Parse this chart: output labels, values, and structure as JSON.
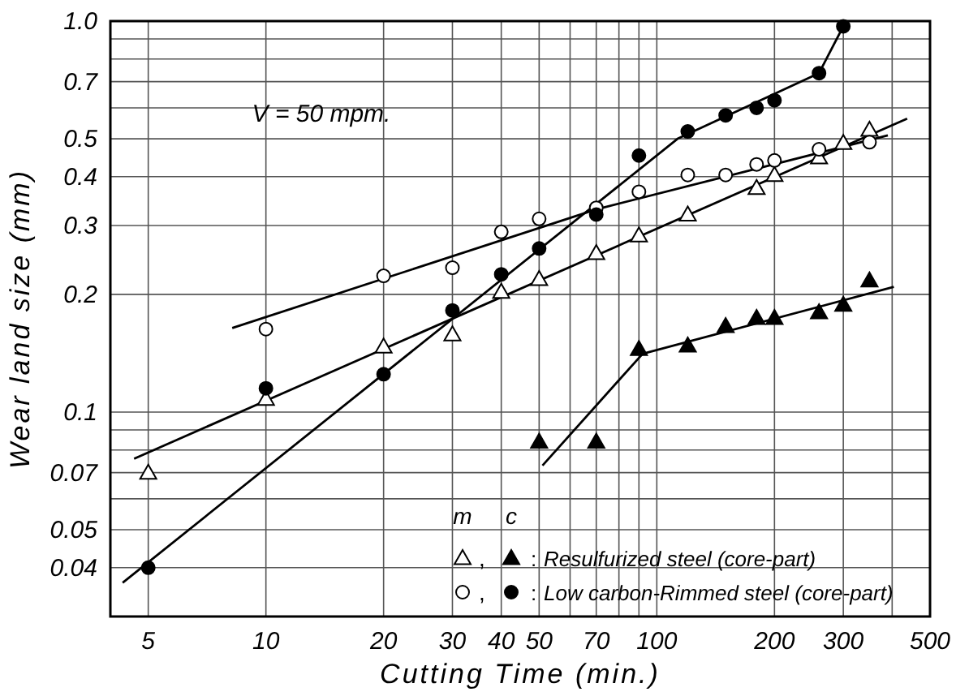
{
  "chart_data": {
    "type": "scatter",
    "xlabel": "Cutting Time (min.)",
    "ylabel": "Wear land size (mm)",
    "annotations": [
      "V = 50 mpm.",
      "m",
      "c",
      ",",
      ":"
    ],
    "log": "xy",
    "grid": true,
    "legend": "bottom right",
    "xlim": [
      4,
      500
    ],
    "ylim": [
      0.03,
      1.0
    ],
    "xticks": [
      5,
      10,
      20,
      30,
      40,
      50,
      {
        "value": 60,
        "label": null
      },
      70,
      {
        "value": 80,
        "label": null
      },
      {
        "value": 90,
        "label": null
      },
      100,
      200,
      300,
      {
        "value": 400,
        "label": null
      },
      500
    ],
    "yticks": [
      0.04,
      0.05,
      {
        "value": 0.06,
        "label": null
      },
      0.07,
      {
        "value": 0.08,
        "label": null
      },
      {
        "value": 0.09,
        "label": null
      },
      0.1,
      0.2,
      0.3,
      0.4,
      0.5,
      {
        "value": 0.6,
        "label": null
      },
      0.7,
      {
        "value": 0.8,
        "label": null
      },
      {
        "value": 0.9,
        "label": null
      },
      {
        "value": 1.0,
        "label": "1.0"
      }
    ],
    "series": [
      {
        "type": "line",
        "color": "#000000",
        "marker": "none",
        "x": [
          4.6,
          437
        ],
        "values": [
          0.076,
          0.563
        ]
      },
      {
        "type": "line",
        "color": "#000000",
        "marker": "none",
        "x": [
          51,
          92,
          404
        ],
        "values": [
          0.073,
          0.141,
          0.209
        ]
      },
      {
        "type": "line",
        "color": "#000000",
        "marker": "none",
        "x": [
          8.2,
          70,
          390
        ],
        "values": [
          0.164,
          0.33,
          0.51
        ]
      },
      {
        "type": "line",
        "color": "#000000",
        "marker": "none",
        "x": [
          4.3,
          113,
          260,
          300
        ],
        "values": [
          0.0366,
          0.5,
          0.736,
          0.97
        ]
      },
      {
        "color": "#ffffff",
        "marker": "triangle",
        "x": [
          5,
          10,
          20,
          30,
          40,
          50,
          70,
          90,
          120,
          180,
          200,
          260,
          300,
          350
        ],
        "values": [
          0.07,
          0.108,
          0.147,
          0.158,
          0.203,
          0.219,
          0.255,
          0.283,
          0.32,
          0.374,
          0.404,
          0.448,
          0.488,
          0.527
        ]
      },
      {
        "name": "Resulfurized steel (core-part)",
        "color": "#000000",
        "marker": "triangle",
        "x": [
          50,
          70,
          90,
          120,
          150,
          180,
          200,
          260,
          300,
          350
        ],
        "values": [
          0.084,
          0.084,
          0.145,
          0.148,
          0.166,
          0.174,
          0.174,
          0.18,
          0.188,
          0.217
        ]
      },
      {
        "color": "#ffffff",
        "marker": "circle",
        "x": [
          10,
          20,
          30,
          40,
          50,
          70,
          90,
          120,
          150,
          180,
          200,
          260,
          350
        ],
        "values": [
          0.163,
          0.223,
          0.234,
          0.289,
          0.312,
          0.333,
          0.366,
          0.404,
          0.404,
          0.43,
          0.44,
          0.47,
          0.49
        ]
      },
      {
        "name": "Low carbon-Rimmed steel (core-part)",
        "color": "#000000",
        "marker": "circle",
        "x": [
          5,
          10,
          20,
          30,
          40,
          50,
          70,
          90,
          120,
          150,
          180,
          200,
          260,
          300
        ],
        "values": [
          0.04,
          0.115,
          0.125,
          0.182,
          0.225,
          0.262,
          0.32,
          0.453,
          0.522,
          0.574,
          0.6,
          0.627,
          0.736,
          0.97
        ]
      }
    ]
  }
}
